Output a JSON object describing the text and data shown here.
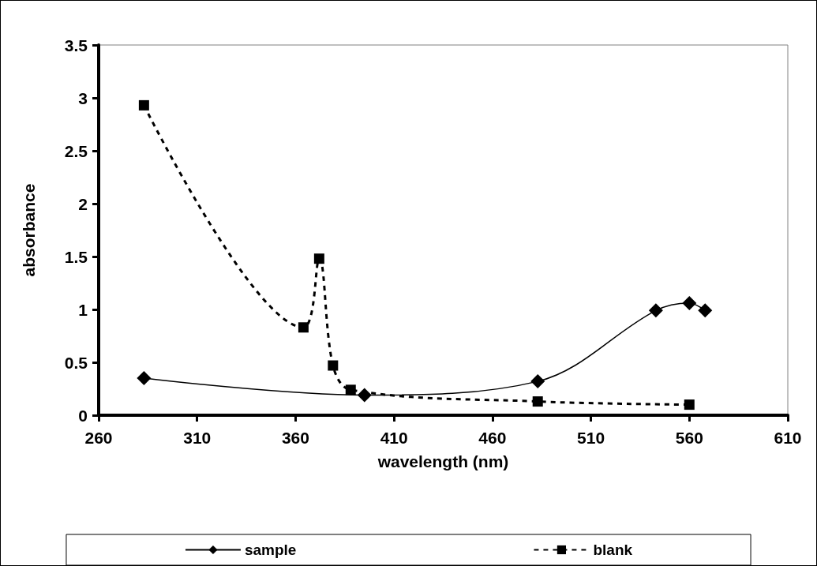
{
  "chart_data": {
    "type": "line",
    "xlabel": "wavelength (nm)",
    "ylabel": "absorbance",
    "xlim": [
      260,
      610
    ],
    "xticks": [
      260,
      310,
      360,
      410,
      460,
      510,
      560,
      610
    ],
    "ylim": [
      0,
      3.5
    ],
    "yticks": [
      0,
      0.5,
      1,
      1.5,
      2,
      2.5,
      3,
      3.5
    ],
    "grid": false,
    "legend": "bottom",
    "series": [
      {
        "name": "sample",
        "color": "#000000",
        "marker": "diamond",
        "line_style": "solid",
        "x": [
          283,
          395,
          483,
          543,
          560,
          568
        ],
        "values": [
          0.35,
          0.19,
          0.32,
          0.99,
          1.06,
          0.99
        ]
      },
      {
        "name": "blank",
        "color": "#000000",
        "marker": "square",
        "line_style": "dashed",
        "x": [
          283,
          364,
          372,
          379,
          388,
          483,
          560
        ],
        "values": [
          2.93,
          0.83,
          1.48,
          0.47,
          0.24,
          0.13,
          0.1
        ]
      }
    ]
  }
}
